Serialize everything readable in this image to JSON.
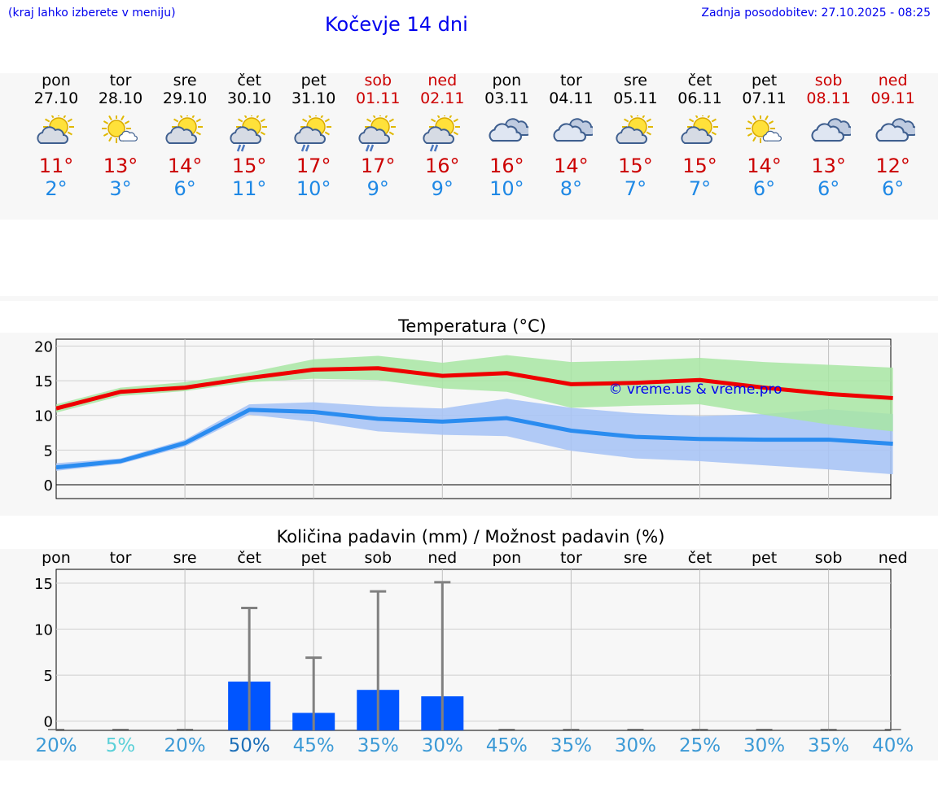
{
  "header": {
    "menu_hint": "(kraj lahko izberete v meniju)",
    "title": "Kočevje 14 dni",
    "updated": "Zadnja posodobitev: 27.10.2025 - 08:25"
  },
  "days": [
    {
      "name": "pon",
      "date": "27.10",
      "weekend": false,
      "icon": "partly-cloudy-icon",
      "max": "11°",
      "min": "2°"
    },
    {
      "name": "tor",
      "date": "28.10",
      "weekend": false,
      "icon": "sun-small-cloud-icon",
      "max": "13°",
      "min": "3°"
    },
    {
      "name": "sre",
      "date": "29.10",
      "weekend": false,
      "icon": "partly-cloudy-icon",
      "max": "14°",
      "min": "6°"
    },
    {
      "name": "čet",
      "date": "30.10",
      "weekend": false,
      "icon": "partly-cloudy-rain-icon",
      "max": "15°",
      "min": "11°"
    },
    {
      "name": "pet",
      "date": "31.10",
      "weekend": false,
      "icon": "partly-cloudy-rain-icon",
      "max": "17°",
      "min": "10°"
    },
    {
      "name": "sob",
      "date": "01.11",
      "weekend": true,
      "icon": "partly-cloudy-rain-icon",
      "max": "17°",
      "min": "9°"
    },
    {
      "name": "ned",
      "date": "02.11",
      "weekend": true,
      "icon": "partly-cloudy-rain-icon",
      "max": "16°",
      "min": "9°"
    },
    {
      "name": "pon",
      "date": "03.11",
      "weekend": false,
      "icon": "cloudy-icon",
      "max": "16°",
      "min": "10°"
    },
    {
      "name": "tor",
      "date": "04.11",
      "weekend": false,
      "icon": "cloudy-icon",
      "max": "14°",
      "min": "8°"
    },
    {
      "name": "sre",
      "date": "05.11",
      "weekend": false,
      "icon": "partly-cloudy-icon",
      "max": "15°",
      "min": "7°"
    },
    {
      "name": "čet",
      "date": "06.11",
      "weekend": false,
      "icon": "partly-cloudy-icon",
      "max": "15°",
      "min": "7°"
    },
    {
      "name": "pet",
      "date": "07.11",
      "weekend": false,
      "icon": "sun-small-cloud-icon",
      "max": "14°",
      "min": "6°"
    },
    {
      "name": "sob",
      "date": "08.11",
      "weekend": true,
      "icon": "cloudy-icon",
      "max": "13°",
      "min": "6°"
    },
    {
      "name": "ned",
      "date": "09.11",
      "weekend": true,
      "icon": "cloudy-icon",
      "max": "12°",
      "min": "6°"
    }
  ],
  "colors": {
    "max_line": "#ee0000",
    "max_band": "#a8e6a3",
    "min_line": "#2a8cf0",
    "min_band": "#a9c4f5",
    "overlap_band": "#7cc4a0",
    "precip_bar": "#0055ff",
    "error_bar": "#808080",
    "weekend": "#cc0000",
    "title_blue": "#0000ee"
  },
  "chart_data": [
    {
      "type": "line",
      "title": "Temperatura (°C)",
      "watermark": "© vreme.us & vreme.pro",
      "x": [
        "27.10",
        "28.10",
        "29.10",
        "30.10",
        "31.10",
        "01.11",
        "02.11",
        "03.11",
        "04.11",
        "05.11",
        "06.11",
        "07.11",
        "08.11",
        "09.11"
      ],
      "ylim": [
        -2,
        21
      ],
      "yticks": [
        0,
        5,
        10,
        15,
        20
      ],
      "series": [
        {
          "name": "max",
          "values": [
            11,
            13.4,
            14,
            15.4,
            16.6,
            16.8,
            15.7,
            16.1,
            14.5,
            14.7,
            15.1,
            14,
            13.1,
            12.5
          ],
          "band_low": [
            10.4,
            12.8,
            13.5,
            14.8,
            15.3,
            15.1,
            13.9,
            13.4,
            11.1,
            11.4,
            11.6,
            10.1,
            8.7,
            7.7
          ],
          "band_high": [
            11.6,
            14,
            14.8,
            16.2,
            18.1,
            18.6,
            17.6,
            18.7,
            17.7,
            17.9,
            18.3,
            17.7,
            17.3,
            16.9
          ]
        },
        {
          "name": "min",
          "values": [
            2.5,
            3.4,
            6,
            10.8,
            10.5,
            9.5,
            9.1,
            9.6,
            7.8,
            6.9,
            6.6,
            6.5,
            6.5,
            5.9
          ],
          "band_low": [
            2,
            3,
            5.5,
            10.1,
            9.1,
            7.7,
            7.2,
            7,
            4.9,
            3.8,
            3.4,
            2.8,
            2.2,
            1.5
          ],
          "band_high": [
            3.1,
            3.8,
            6.5,
            11.6,
            11.9,
            11.3,
            11,
            12.4,
            11.1,
            10.3,
            9.9,
            10.2,
            10.9,
            10.2
          ]
        }
      ]
    },
    {
      "type": "bar",
      "title": "Količina padavin (mm) / Možnost padavin (%)",
      "categories": [
        "pon",
        "tor",
        "sre",
        "čet",
        "pet",
        "sob",
        "ned",
        "pon",
        "tor",
        "sre",
        "čet",
        "pet",
        "sob",
        "ned"
      ],
      "ylim": [
        -1,
        16.5
      ],
      "yticks": [
        0,
        5,
        10,
        15
      ],
      "values": [
        0,
        0,
        0,
        4.3,
        0.9,
        3.4,
        2.7,
        0,
        0,
        0,
        0,
        0,
        0,
        0
      ],
      "error_max": [
        0,
        0,
        0,
        12.3,
        6.9,
        14.1,
        15.1,
        0,
        0,
        0,
        0,
        0,
        0,
        0
      ],
      "chance": [
        "20%",
        "5%",
        "20%",
        "50%",
        "45%",
        "35%",
        "30%",
        "45%",
        "35%",
        "30%",
        "25%",
        "30%",
        "35%",
        "40%"
      ],
      "chance_colors": [
        "#3c9ad6",
        "#5ad0d8",
        "#3c9ad6",
        "#1d6fb8",
        "#3c9ad6",
        "#3c9ad6",
        "#3c9ad6",
        "#3c9ad6",
        "#3c9ad6",
        "#3c9ad6",
        "#3c9ad6",
        "#3c9ad6",
        "#3c9ad6",
        "#3c9ad6"
      ]
    }
  ]
}
